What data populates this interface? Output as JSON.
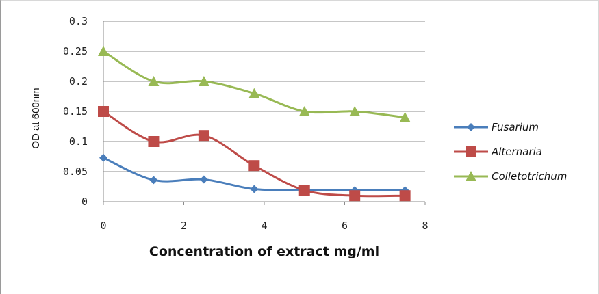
{
  "chart_data": {
    "type": "line",
    "xlabel": "Concentration of extract mg/ml",
    "ylabel": "OD at 600nm",
    "xlim": [
      0,
      8
    ],
    "ylim": [
      0,
      0.3
    ],
    "x_ticks": [
      "0",
      "2",
      "4",
      "6",
      "8"
    ],
    "y_ticks": [
      "0",
      "0.05",
      "0.1",
      "0.15",
      "0.2",
      "0.25",
      "0.3"
    ],
    "grid": "horizontal",
    "legend_position": "right",
    "x": [
      0,
      1.25,
      2.5,
      3.75,
      5,
      6.25,
      7.5
    ],
    "series": [
      {
        "name": "Fusarium",
        "values": [
          0.073,
          0.036,
          0.037,
          0.021,
          0.02,
          0.019,
          0.019
        ],
        "color": "#4a7ebb",
        "marker": "diamond"
      },
      {
        "name": "Alternaria",
        "values": [
          0.15,
          0.1,
          0.11,
          0.06,
          0.019,
          0.01,
          0.01
        ],
        "color": "#be4b48",
        "marker": "square"
      },
      {
        "name": "Colletotrichum",
        "values": [
          0.25,
          0.2,
          0.2,
          0.18,
          0.15,
          0.15,
          0.14
        ],
        "color": "#98b954",
        "marker": "triangle"
      }
    ]
  }
}
